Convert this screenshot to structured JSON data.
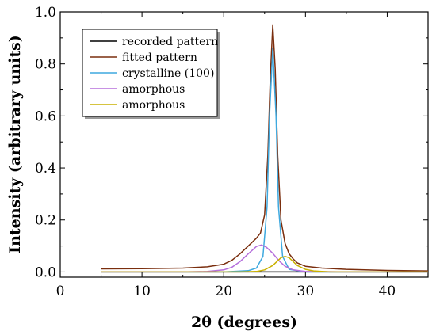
{
  "chart_data": {
    "type": "line",
    "xlabel": "2θ (degrees)",
    "ylabel": "Intensity (arbitrary units)",
    "xlim": [
      0,
      45
    ],
    "ylim": [
      -0.02,
      1.0
    ],
    "xticks": [
      0,
      10,
      20,
      30,
      40
    ],
    "yticks": [
      0.0,
      0.2,
      0.4,
      0.6,
      0.8,
      1.0
    ],
    "xtick_labels": [
      "0",
      "10",
      "20",
      "30",
      "40"
    ],
    "ytick_labels": [
      "0.0",
      "0.2",
      "0.4",
      "0.6",
      "0.8",
      "1.0"
    ],
    "grid": false,
    "legend_position": "top-left",
    "series": [
      {
        "name": "recorded pattern",
        "color": "#000000",
        "x": [
          5,
          10,
          15,
          20,
          25,
          28,
          30,
          35,
          40,
          45
        ],
        "y": [
          0.0,
          0.0,
          0.0,
          0.0,
          0.0,
          0.0,
          0.0,
          0.0,
          0.0,
          0.0
        ]
      },
      {
        "name": "fitted pattern",
        "color": "#7a2e0e",
        "x": [
          5,
          10,
          15,
          18,
          20,
          21,
          22,
          23,
          24,
          24.5,
          25,
          25.4,
          25.7,
          26,
          26.3,
          26.6,
          27,
          27.5,
          28,
          28.5,
          29,
          30,
          32,
          35,
          40,
          45
        ],
        "y": [
          0.012,
          0.013,
          0.015,
          0.02,
          0.03,
          0.045,
          0.07,
          0.1,
          0.13,
          0.15,
          0.22,
          0.45,
          0.75,
          0.95,
          0.78,
          0.45,
          0.2,
          0.11,
          0.07,
          0.05,
          0.035,
          0.022,
          0.015,
          0.01,
          0.006,
          0.004
        ]
      },
      {
        "name": "crystalline (100)",
        "color": "#3fa9df",
        "x": [
          5,
          20,
          23,
          24,
          24.8,
          25.3,
          25.6,
          26,
          26.4,
          26.7,
          27.2,
          28,
          30,
          35,
          45
        ],
        "y": [
          0.0,
          0.0,
          0.005,
          0.015,
          0.06,
          0.25,
          0.6,
          0.86,
          0.6,
          0.25,
          0.06,
          0.01,
          0.0,
          0.0,
          0.0
        ]
      },
      {
        "name": "amorphous",
        "color": "#b56fdc",
        "x": [
          5,
          15,
          18,
          20,
          21,
          22,
          23,
          24,
          24.6,
          25.2,
          26,
          26.8,
          27.5,
          28.5,
          30,
          35,
          45
        ],
        "y": [
          0.0,
          0.0,
          0.002,
          0.008,
          0.018,
          0.04,
          0.07,
          0.098,
          0.104,
          0.096,
          0.072,
          0.042,
          0.022,
          0.008,
          0.002,
          0.0,
          0.0
        ]
      },
      {
        "name": "amorphous",
        "color": "#c9b100",
        "x": [
          5,
          22,
          24,
          25,
          26,
          26.5,
          27,
          27.5,
          28,
          28.5,
          29,
          30,
          31,
          33,
          45
        ],
        "y": [
          0.0,
          0.0,
          0.002,
          0.008,
          0.025,
          0.04,
          0.055,
          0.06,
          0.055,
          0.04,
          0.025,
          0.01,
          0.004,
          0.0,
          0.0
        ]
      }
    ]
  }
}
